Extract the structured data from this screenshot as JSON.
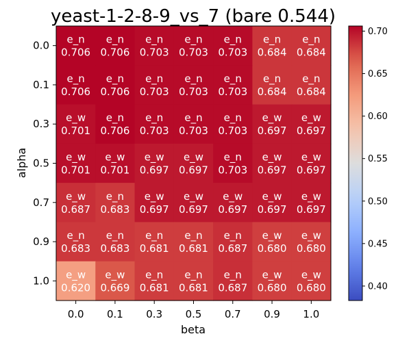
{
  "chart_data": {
    "type": "heatmap",
    "title": "yeast-1-2-8-9_vs_7 (bare 0.544)",
    "xlabel": "beta",
    "ylabel": "alpha",
    "x_categories": [
      "0.0",
      "0.1",
      "0.3",
      "0.5",
      "0.7",
      "0.9",
      "1.0"
    ],
    "y_categories": [
      "0.0",
      "0.1",
      "0.3",
      "0.5",
      "0.7",
      "0.9",
      "1.0"
    ],
    "cells": [
      {
        "alpha": "0.0",
        "labels": [
          "e_n",
          "e_n",
          "e_n",
          "e_n",
          "e_n",
          "e_n",
          "e_n"
        ],
        "values": [
          "0.706",
          "0.706",
          "0.703",
          "0.703",
          "0.703",
          "0.684",
          "0.684"
        ]
      },
      {
        "alpha": "0.1",
        "labels": [
          "e_n",
          "e_n",
          "e_n",
          "e_n",
          "e_n",
          "e_n",
          "e_n"
        ],
        "values": [
          "0.706",
          "0.706",
          "0.703",
          "0.703",
          "0.703",
          "0.684",
          "0.684"
        ]
      },
      {
        "alpha": "0.3",
        "labels": [
          "e_w",
          "e_n",
          "e_n",
          "e_n",
          "e_n",
          "e_w",
          "e_w"
        ],
        "values": [
          "0.701",
          "0.706",
          "0.703",
          "0.703",
          "0.703",
          "0.697",
          "0.697"
        ]
      },
      {
        "alpha": "0.5",
        "labels": [
          "e_w",
          "e_w",
          "e_w",
          "e_w",
          "e_n",
          "e_w",
          "e_w"
        ],
        "values": [
          "0.701",
          "0.701",
          "0.697",
          "0.697",
          "0.703",
          "0.697",
          "0.697"
        ]
      },
      {
        "alpha": "0.7",
        "labels": [
          "e_w",
          "e_n",
          "e_w",
          "e_w",
          "e_w",
          "e_w",
          "e_w"
        ],
        "values": [
          "0.687",
          "0.683",
          "0.697",
          "0.697",
          "0.697",
          "0.697",
          "0.697"
        ]
      },
      {
        "alpha": "0.9",
        "labels": [
          "e_n",
          "e_n",
          "e_n",
          "e_n",
          "e_n",
          "e_w",
          "e_w"
        ],
        "values": [
          "0.683",
          "0.683",
          "0.681",
          "0.681",
          "0.687",
          "0.680",
          "0.680"
        ]
      },
      {
        "alpha": "1.0",
        "labels": [
          "e_w",
          "e_w",
          "e_n",
          "e_n",
          "e_n",
          "e_w",
          "e_w"
        ],
        "values": [
          "0.620",
          "0.669",
          "0.681",
          "0.681",
          "0.687",
          "0.680",
          "0.680"
        ]
      }
    ],
    "colorbar": {
      "colormap": "coolwarm",
      "vmin": 0.383,
      "vmax": 0.706,
      "ticks": [
        "0.40",
        "0.45",
        "0.50",
        "0.55",
        "0.60",
        "0.65",
        "0.70"
      ]
    },
    "annotation_color": "#ffffff",
    "grid": false
  }
}
